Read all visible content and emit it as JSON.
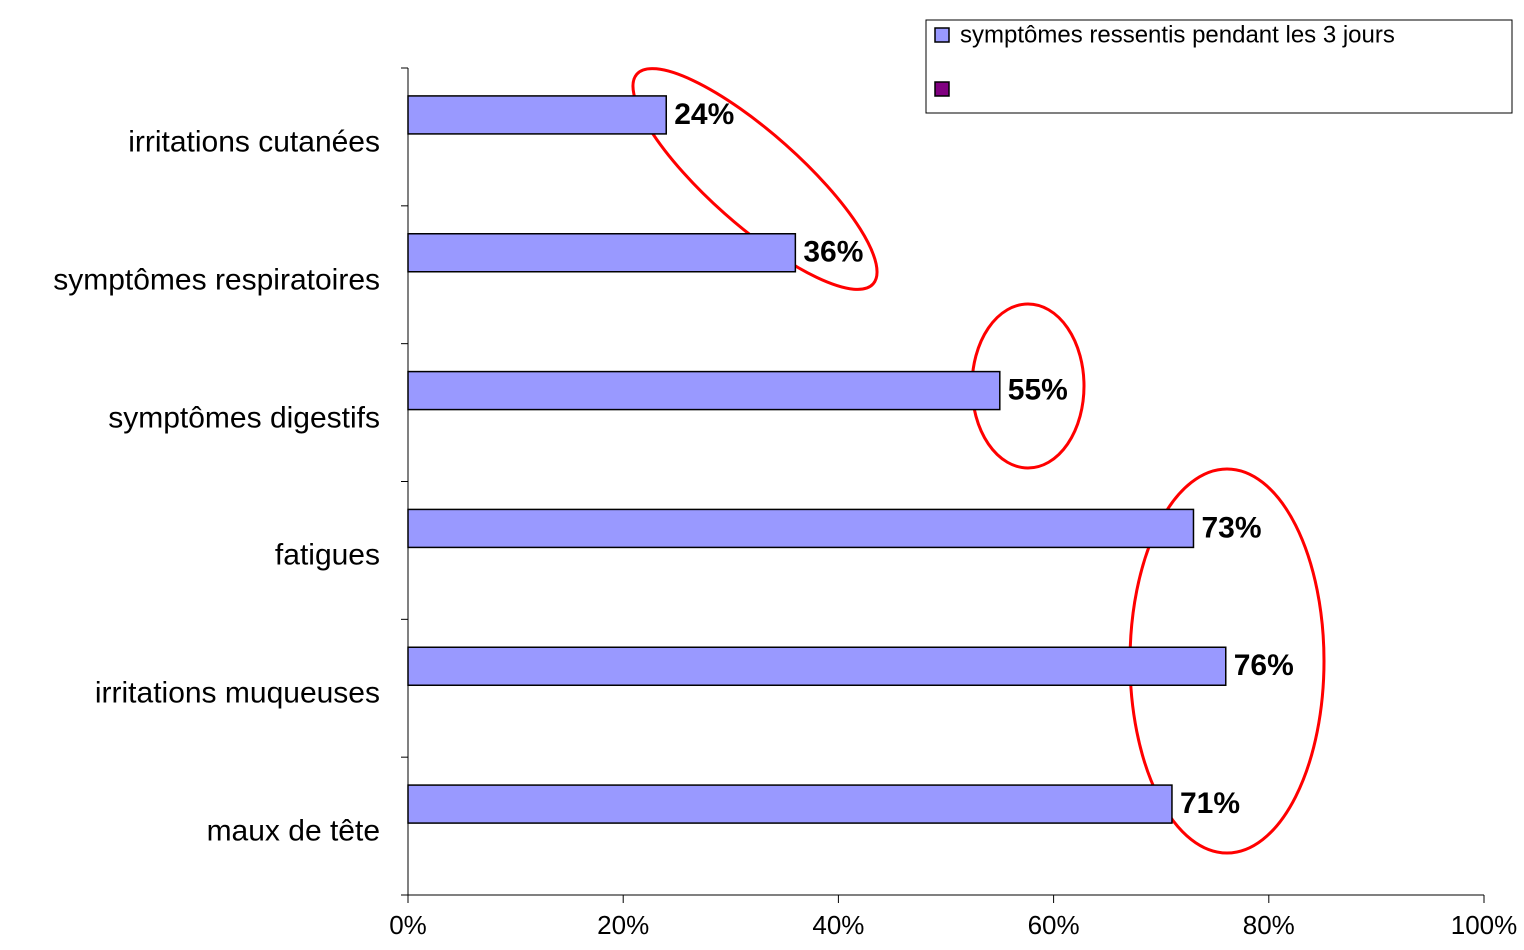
{
  "chart_data": {
    "type": "barh",
    "categories": [
      "irritations cutanées",
      "symptômes respiratoires",
      "symptômes digestifs",
      "fatigues",
      "irritations muqueuses",
      "maux de tête"
    ],
    "series": [
      {
        "name": "symptômes ressentis pendant les 3 jours",
        "color": "#9999ff",
        "values": [
          24,
          36,
          55,
          73,
          76,
          71
        ],
        "value_labels": [
          "24%",
          "36%",
          "55%",
          "73%",
          "76%",
          "71%"
        ]
      },
      {
        "color": "#800080",
        "values": [
          null,
          null,
          null,
          null,
          null,
          null
        ]
      }
    ],
    "xlim": [
      0,
      100
    ],
    "xticks": [
      {
        "value": 0,
        "label": "0%"
      },
      {
        "value": 20,
        "label": "20%"
      },
      {
        "value": 40,
        "label": "40%"
      },
      {
        "value": 60,
        "label": "60%"
      },
      {
        "value": 80,
        "label": "80%"
      },
      {
        "value": 100,
        "label": "100%"
      }
    ],
    "legend": "top-right"
  }
}
